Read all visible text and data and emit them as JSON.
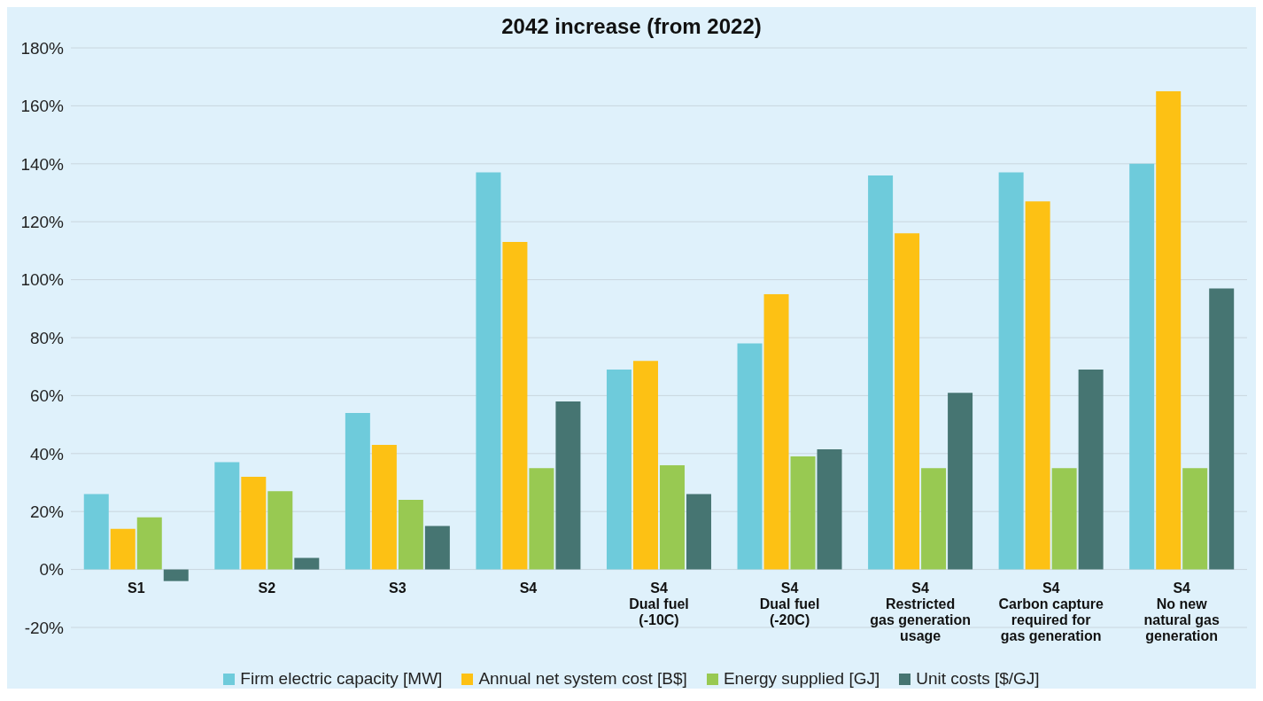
{
  "chart_data": {
    "type": "bar",
    "title": "2042 increase (from 2022)",
    "categories": [
      "S1",
      "S2",
      "S3",
      "S4",
      "S4\nDual fuel\n(-10C)",
      "S4\nDual fuel\n(-20C)",
      "S4\nRestricted\ngas generation\nusage",
      "S4\nCarbon capture\nrequired for\ngas generation",
      "S4\nNo new\nnatural gas\ngeneration"
    ],
    "series": [
      {
        "name": "Firm electric capacity [MW]",
        "color": "#6ecbdb",
        "values": [
          26,
          37,
          54,
          137,
          69,
          78,
          136,
          137,
          140
        ]
      },
      {
        "name": "Annual net system cost [B$]",
        "color": "#fdc114",
        "values": [
          14,
          32,
          43,
          113,
          72,
          95,
          116,
          127,
          165
        ]
      },
      {
        "name": "Energy supplied [GJ]",
        "color": "#98c952",
        "values": [
          18,
          27,
          24,
          35,
          36,
          39,
          35,
          35,
          35
        ]
      },
      {
        "name": "Unit costs [$/GJ]",
        "color": "#467572",
        "values": [
          -4,
          4,
          15,
          58,
          26,
          41.5,
          61,
          69,
          97
        ]
      }
    ],
    "ylim": [
      -20,
      180
    ],
    "yticks": [
      {
        "value": -20,
        "label": "-20%"
      },
      {
        "value": 0,
        "label": "0%"
      },
      {
        "value": 20,
        "label": "20%"
      },
      {
        "value": 40,
        "label": "40%"
      },
      {
        "value": 60,
        "label": "60%"
      },
      {
        "value": 80,
        "label": "80%"
      },
      {
        "value": 100,
        "label": "100%"
      },
      {
        "value": 120,
        "label": "120%"
      },
      {
        "value": 140,
        "label": "140%"
      },
      {
        "value": 160,
        "label": "160%"
      },
      {
        "value": 180,
        "label": "180%"
      }
    ],
    "grid": "y",
    "legend": "bottom"
  }
}
